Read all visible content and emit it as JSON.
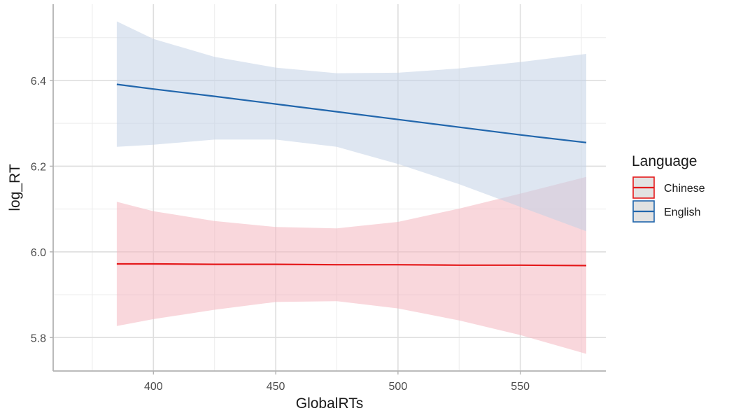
{
  "chart_data": {
    "type": "line",
    "xlabel": "GlobalRTs",
    "ylabel": "log_RT",
    "xlim": [
      359,
      585
    ],
    "ylim": [
      5.722,
      6.578
    ],
    "x_ticks": [
      400,
      450,
      500,
      550
    ],
    "x_tick_labels": [
      "400",
      "450",
      "500",
      "550"
    ],
    "y_ticks": [
      5.8,
      6.0,
      6.2,
      6.4
    ],
    "y_tick_labels": [
      "5.8",
      "6.0",
      "6.2",
      "6.4"
    ],
    "grid": true,
    "legend": {
      "title": "Language",
      "position": "right"
    },
    "series": [
      {
        "name": "Chinese",
        "color": "#e41a1c",
        "fill": "#f4b7bf",
        "x": [
          385,
          400,
          425,
          450,
          475,
          500,
          525,
          550,
          577
        ],
        "y": [
          5.972,
          5.972,
          5.971,
          5.971,
          5.97,
          5.97,
          5.969,
          5.969,
          5.968
        ],
        "lower": [
          5.827,
          5.843,
          5.865,
          5.883,
          5.885,
          5.868,
          5.84,
          5.806,
          5.762
        ],
        "upper": [
          6.117,
          6.095,
          6.072,
          6.058,
          6.055,
          6.07,
          6.101,
          6.136,
          6.175
        ]
      },
      {
        "name": "English",
        "color": "#2166ac",
        "fill": "#c3d1e6",
        "x": [
          385,
          400,
          425,
          450,
          475,
          500,
          525,
          550,
          577
        ],
        "y": [
          6.391,
          6.38,
          6.363,
          6.345,
          6.327,
          6.309,
          6.291,
          6.273,
          6.255
        ],
        "lower": [
          6.245,
          6.25,
          6.262,
          6.262,
          6.245,
          6.205,
          6.158,
          6.105,
          6.048
        ],
        "upper": [
          6.538,
          6.497,
          6.455,
          6.43,
          6.417,
          6.418,
          6.428,
          6.443,
          6.462
        ]
      }
    ]
  }
}
